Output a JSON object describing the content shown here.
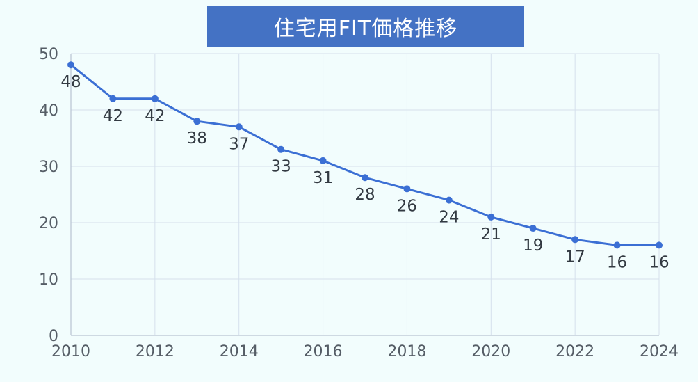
{
  "chart_data": {
    "type": "line",
    "title": "住宅用FIT価格推移",
    "x": [
      2010,
      2011,
      2012,
      2013,
      2014,
      2015,
      2016,
      2017,
      2018,
      2019,
      2020,
      2021,
      2022,
      2023,
      2024
    ],
    "series": [
      {
        "values": [
          48,
          42,
          42,
          38,
          37,
          33,
          31,
          28,
          26,
          24,
          21,
          19,
          17,
          16,
          16
        ],
        "color": "#3b6fd4"
      }
    ],
    "xlim": [
      2010,
      2024
    ],
    "ylim": [
      0,
      50
    ],
    "xticks": [
      "2010",
      "2012",
      "2014",
      "2016",
      "2018",
      "2020",
      "2022",
      "2024"
    ],
    "yticks": [
      "0",
      "10",
      "20",
      "30",
      "40",
      "50"
    ],
    "grid": true,
    "data_labels": true
  },
  "colors": {
    "background": "#f2fdfd",
    "title_bar": "#4472c4",
    "grid": "#d5e0ec"
  }
}
